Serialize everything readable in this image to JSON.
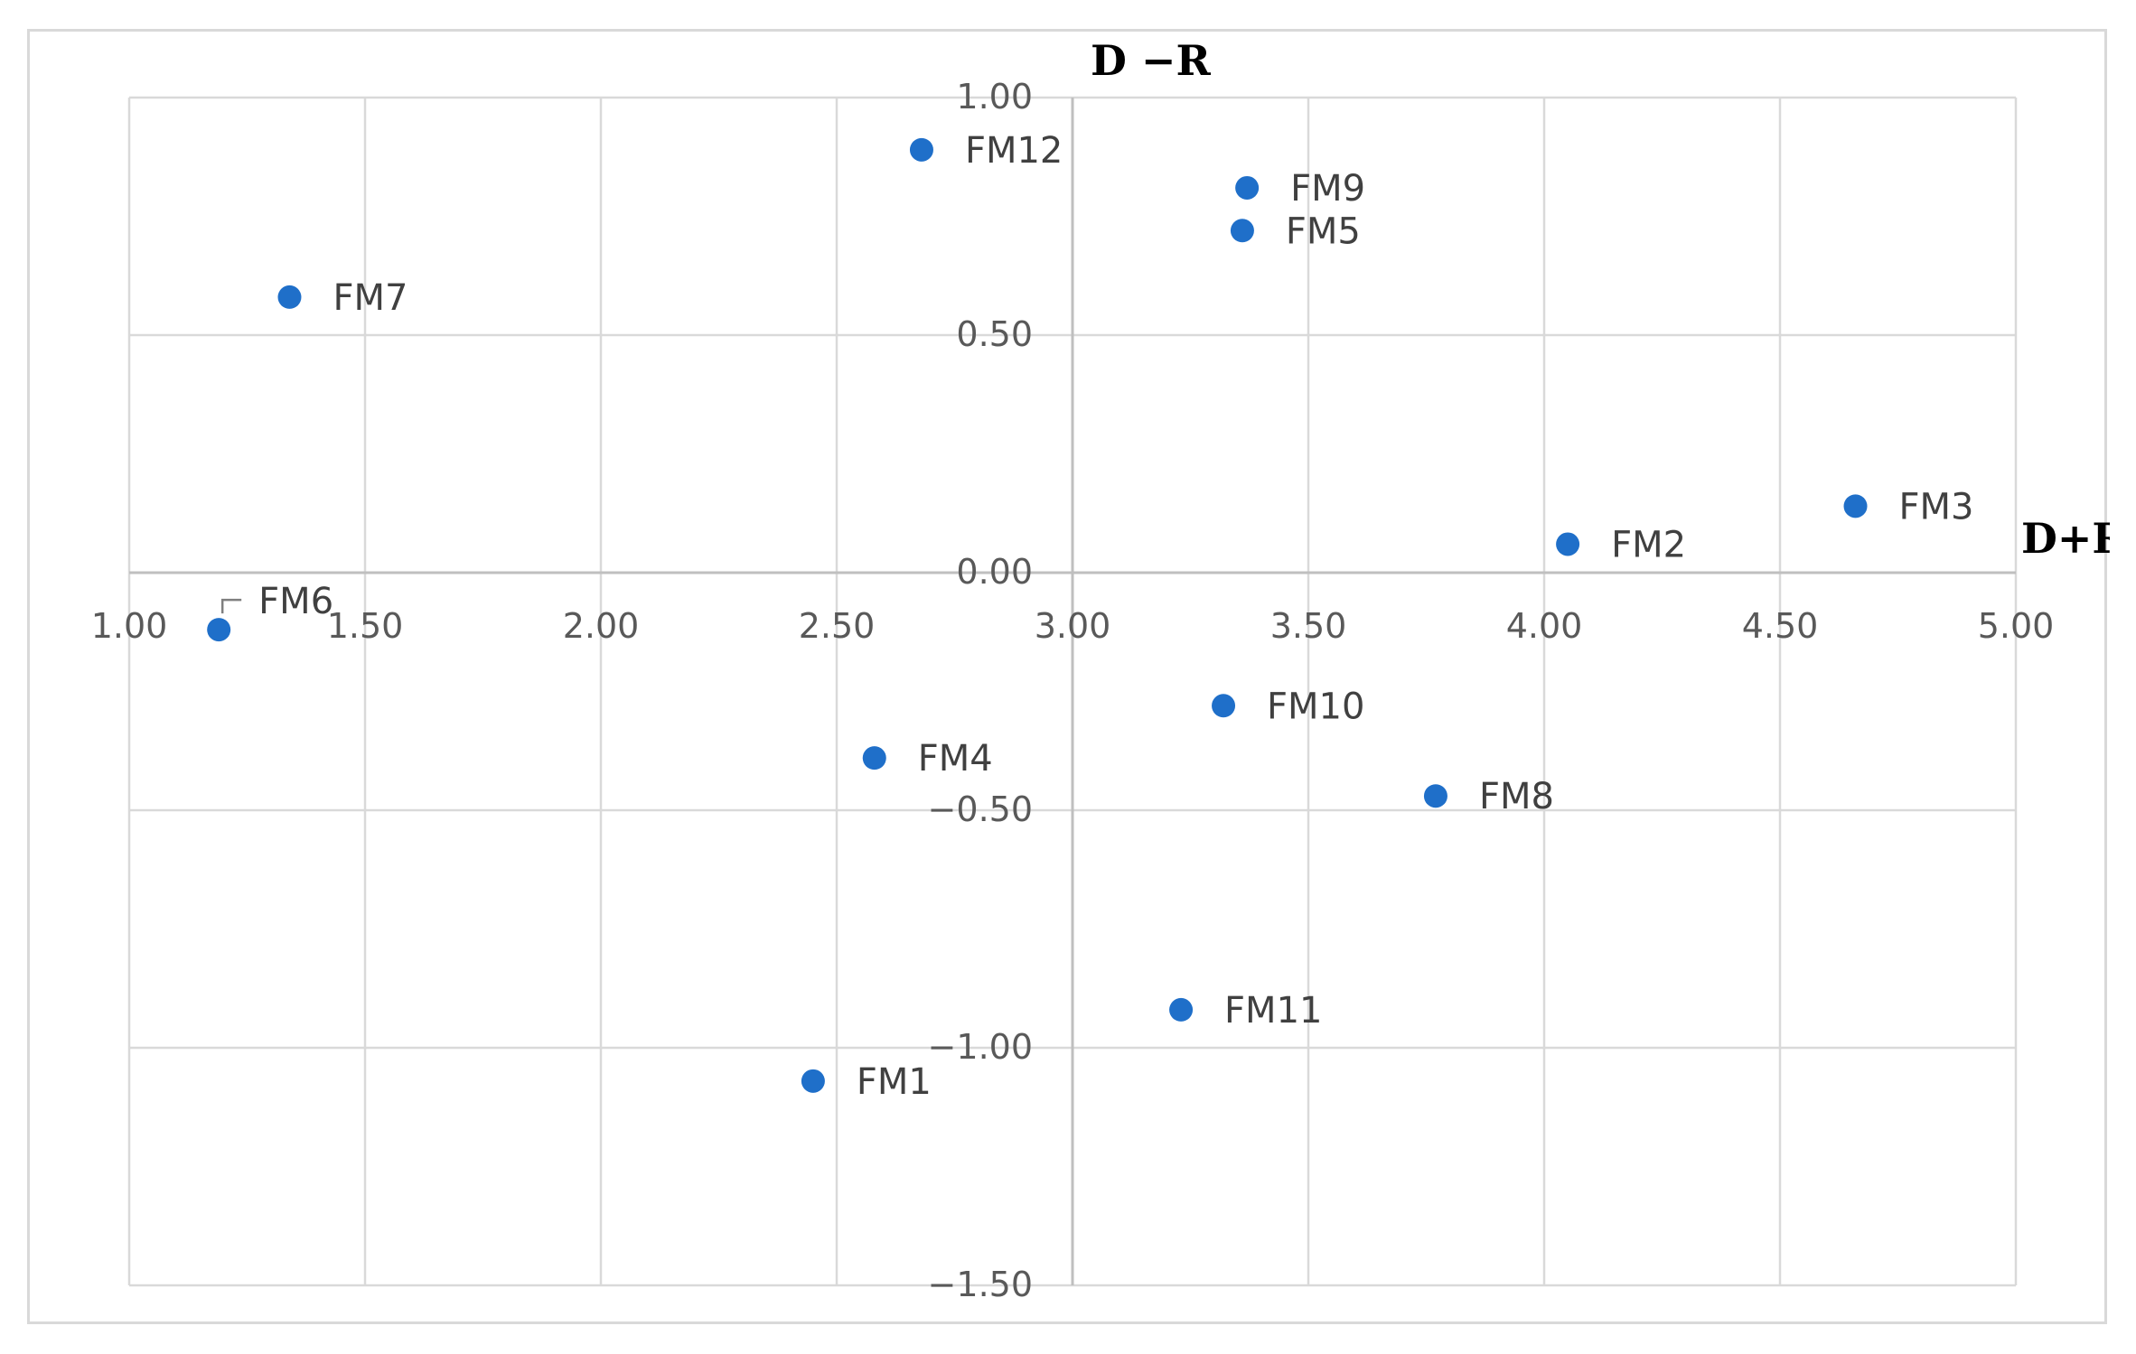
{
  "chart_data": {
    "type": "scatter",
    "title": "",
    "xlabel": "D+R",
    "ylabel": "D −R",
    "xlim": [
      1.0,
      5.0
    ],
    "ylim": [
      -1.5,
      1.0
    ],
    "x_ticks": [
      "1.00",
      "1.50",
      "2.00",
      "2.50",
      "3.00",
      "3.50",
      "4.00",
      "4.50",
      "5.00"
    ],
    "y_ticks": [
      "−1.50",
      "−1.00",
      "−0.50",
      "0.00",
      "0.50",
      "1.00"
    ],
    "marker_color": "#1f6fc9",
    "points": [
      {
        "label": "FM1",
        "x": 2.45,
        "y": -1.07
      },
      {
        "label": "FM2",
        "x": 4.05,
        "y": 0.06
      },
      {
        "label": "FM3",
        "x": 4.66,
        "y": 0.14
      },
      {
        "label": "FM4",
        "x": 2.58,
        "y": -0.39
      },
      {
        "label": "FM5",
        "x": 3.36,
        "y": 0.72
      },
      {
        "label": "FM6",
        "x": 1.19,
        "y": -0.12
      },
      {
        "label": "FM7",
        "x": 1.34,
        "y": 0.58
      },
      {
        "label": "FM8",
        "x": 3.77,
        "y": -0.47
      },
      {
        "label": "FM9",
        "x": 3.37,
        "y": 0.81
      },
      {
        "label": "FM10",
        "x": 3.32,
        "y": -0.28
      },
      {
        "label": "FM11",
        "x": 3.23,
        "y": -0.92
      },
      {
        "label": "FM12",
        "x": 2.68,
        "y": 0.89
      }
    ]
  }
}
